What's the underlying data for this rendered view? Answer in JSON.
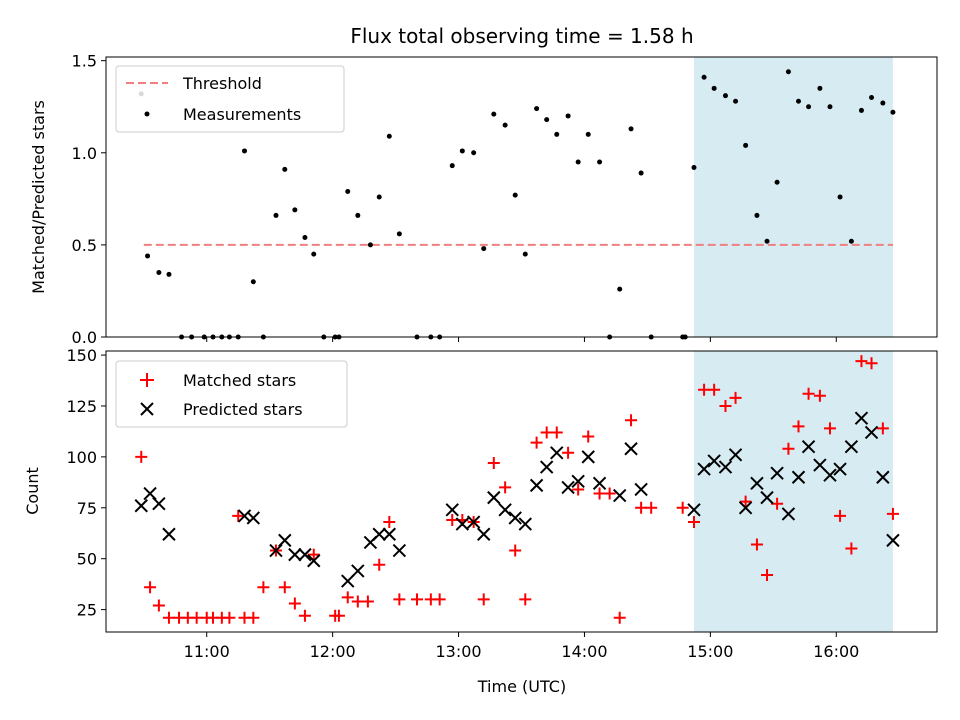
{
  "chart_data": {
    "type": "scatter",
    "title": "Flux total observing time = 1.58 h",
    "xlabel": "Time (UTC)",
    "x_ticks": [
      "11:00",
      "12:00",
      "13:00",
      "14:00",
      "15:00",
      "16:00"
    ],
    "x_tick_hours": [
      11,
      12,
      13,
      14,
      15,
      16
    ],
    "xlim": [
      10.2,
      16.8
    ],
    "shaded_region": {
      "x_start": 14.87,
      "x_end": 16.45,
      "color": "#add8e6"
    },
    "colors": {
      "threshold": "#f08080",
      "measurements": "#000000",
      "matched": "#ff0000",
      "predicted": "#000000",
      "shade": "#add8e6"
    },
    "panels": [
      {
        "name": "ratio",
        "ylabel": "Matched/Predicted stars",
        "ylim": [
          0,
          1.52
        ],
        "y_ticks": [
          0.0,
          0.5,
          1.0,
          1.5
        ],
        "y_tick_labels": [
          "0.0",
          "0.5",
          "1.0",
          "1.5"
        ],
        "legend": {
          "threshold_label": "Threshold",
          "measurements_label": "Measurements"
        },
        "threshold": {
          "value": 0.5,
          "x_start": 10.5,
          "x_end": 16.45
        },
        "measurements": {
          "x": [
            10.48,
            10.53,
            10.62,
            10.7,
            10.8,
            10.88,
            10.98,
            11.05,
            11.12,
            11.18,
            11.25,
            11.3,
            11.37,
            11.45,
            11.55,
            11.62,
            11.7,
            11.78,
            11.85,
            11.93,
            12.02,
            12.05,
            12.12,
            12.2,
            12.3,
            12.37,
            12.45,
            12.53,
            12.67,
            12.78,
            12.85,
            12.95,
            13.03,
            13.12,
            13.2,
            13.28,
            13.37,
            13.45,
            13.53,
            13.62,
            13.7,
            13.78,
            13.87,
            13.95,
            14.03,
            14.12,
            14.2,
            14.28,
            14.37,
            14.45,
            14.53,
            14.78,
            14.8,
            14.87,
            14.95,
            15.03,
            15.12,
            15.2,
            15.28,
            15.37,
            15.45,
            15.53,
            15.62,
            15.7,
            15.78,
            15.87,
            15.95,
            16.03,
            16.12,
            16.2,
            16.28,
            16.37,
            16.45
          ],
          "y": [
            1.32,
            0.44,
            0.35,
            0.34,
            0,
            0,
            0,
            0,
            0,
            0,
            0,
            1.01,
            0.3,
            0,
            0.66,
            0.91,
            0.69,
            0.54,
            0.45,
            0,
            0,
            0,
            0.79,
            0.66,
            0.5,
            0.76,
            1.09,
            0.56,
            0,
            0,
            0,
            0.93,
            1.01,
            1.0,
            0.48,
            1.21,
            1.15,
            0.77,
            0.45,
            1.24,
            1.18,
            1.1,
            1.2,
            0.95,
            1.1,
            0.95,
            0,
            0.26,
            1.13,
            0.89,
            0,
            0,
            0,
            0.92,
            1.41,
            1.35,
            1.31,
            1.28,
            1.04,
            0.66,
            0.52,
            0.84,
            1.44,
            1.28,
            1.25,
            1.35,
            1.25,
            0.76,
            0.52,
            1.23,
            1.3,
            1.27,
            1.22
          ]
        }
      },
      {
        "name": "count",
        "ylabel": "Count",
        "ylim": [
          14,
          152
        ],
        "y_ticks": [
          25,
          50,
          75,
          100,
          125,
          150
        ],
        "y_tick_labels": [
          "25",
          "50",
          "75",
          "100",
          "125",
          "150"
        ],
        "legend": {
          "matched_label": "Matched stars",
          "predicted_label": "Predicted stars"
        },
        "matched": {
          "x": [
            10.48,
            10.55,
            10.62,
            10.7,
            10.78,
            10.85,
            10.92,
            11.0,
            11.05,
            11.12,
            11.18,
            11.25,
            11.3,
            11.37,
            11.45,
            11.55,
            11.62,
            11.7,
            11.78,
            11.85,
            12.02,
            12.05,
            12.12,
            12.2,
            12.28,
            12.37,
            12.45,
            12.53,
            12.67,
            12.78,
            12.85,
            12.95,
            13.03,
            13.12,
            13.2,
            13.28,
            13.37,
            13.45,
            13.53,
            13.62,
            13.7,
            13.78,
            13.87,
            13.95,
            14.03,
            14.12,
            14.2,
            14.28,
            14.37,
            14.45,
            14.53,
            14.78,
            14.87,
            14.95,
            15.03,
            15.12,
            15.2,
            15.28,
            15.37,
            15.45,
            15.53,
            15.62,
            15.7,
            15.78,
            15.87,
            15.95,
            16.03,
            16.12,
            16.2,
            16.28,
            16.37,
            16.45
          ],
          "y": [
            100,
            36,
            27,
            21,
            21,
            21,
            21,
            21,
            21,
            21,
            21,
            71,
            21,
            21,
            36,
            54,
            36,
            28,
            22,
            52,
            22,
            22,
            31,
            29,
            29,
            47,
            68,
            30,
            30,
            30,
            30,
            69,
            69,
            68,
            30,
            97,
            85,
            54,
            30,
            107,
            112,
            112,
            102,
            84,
            110,
            82,
            82,
            21,
            118,
            75,
            75,
            75,
            68,
            133,
            133,
            125,
            129,
            78,
            57,
            42,
            77,
            104,
            115,
            131,
            130,
            114,
            71,
            55,
            147,
            146,
            114,
            72
          ]
        },
        "predicted": {
          "x": [
            10.48,
            10.55,
            10.62,
            10.7,
            11.3,
            11.37,
            11.55,
            11.62,
            11.7,
            11.78,
            11.85,
            12.12,
            12.2,
            12.3,
            12.37,
            12.45,
            12.53,
            12.95,
            13.03,
            13.12,
            13.2,
            13.28,
            13.37,
            13.45,
            13.53,
            13.62,
            13.7,
            13.78,
            13.87,
            13.95,
            14.03,
            14.12,
            14.28,
            14.37,
            14.45,
            14.87,
            14.95,
            15.03,
            15.12,
            15.2,
            15.28,
            15.37,
            15.45,
            15.53,
            15.62,
            15.7,
            15.78,
            15.87,
            15.95,
            16.03,
            16.12,
            16.2,
            16.28,
            16.37,
            16.45
          ],
          "y": [
            76,
            82,
            77,
            62,
            71,
            70,
            54,
            59,
            52,
            52,
            49,
            39,
            44,
            58,
            62,
            62,
            54,
            74,
            67,
            68,
            62,
            80,
            74,
            70,
            67,
            86,
            95,
            102,
            85,
            88,
            100,
            87,
            81,
            104,
            84,
            74,
            94,
            98,
            95,
            101,
            75,
            87,
            80,
            92,
            72,
            90,
            105,
            96,
            91,
            94,
            105,
            119,
            112,
            90,
            59
          ]
        }
      }
    ]
  }
}
